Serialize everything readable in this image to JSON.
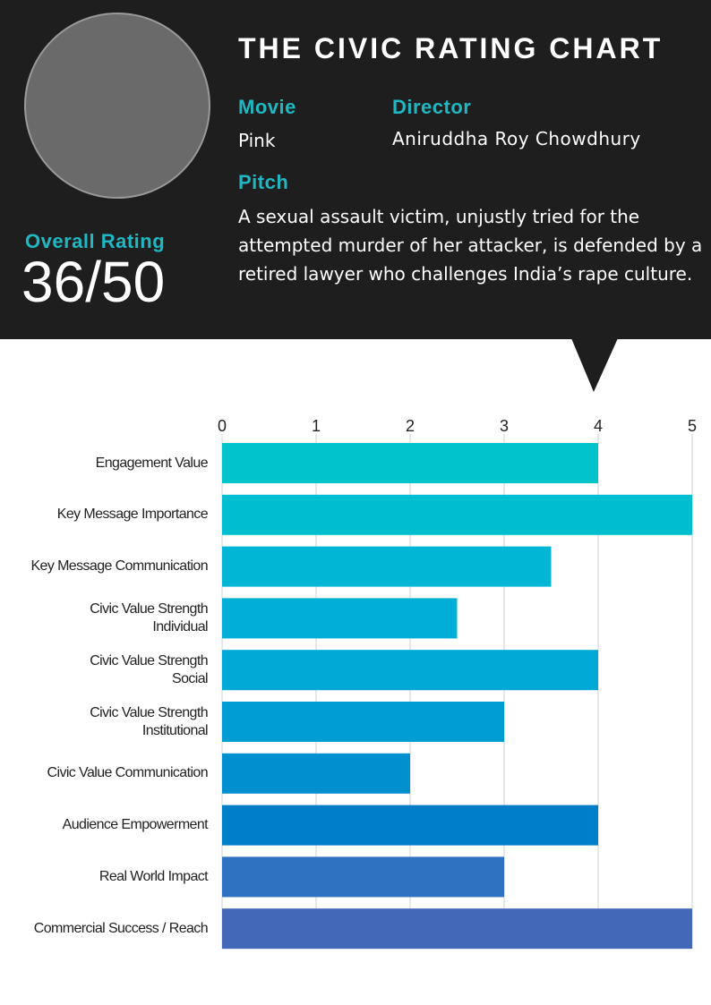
{
  "header": {
    "title": "THE CIVIC RATING CHART",
    "movie_label": "Movie",
    "movie": "Pink",
    "director_label": "Director",
    "director": "Aniruddha Roy Chowdhury",
    "pitch_label": "Pitch",
    "pitch": "A sexual assault victim, unjustly tried for the attempted murder of her attacker, is defended by a retired lawyer who challenges India’s rape culture.",
    "rating_label": "Overall Rating",
    "rating": "36/50"
  },
  "chart_data": {
    "type": "bar",
    "orientation": "horizontal",
    "categories": [
      "Engagement Value",
      "Key Message Importance",
      "Key Message Communication",
      "Civic Value Strength\nIndividual",
      "Civic Value Strength\nSocial",
      "Civic Value Strength\nInstitutional",
      "Civic Value Communication",
      "Audience Empowerment",
      "Real World Impact",
      "Commercial Success / Reach"
    ],
    "values": [
      4,
      5,
      3.5,
      2.5,
      4,
      3,
      2,
      4,
      3,
      5
    ],
    "colors": [
      "#00c3cc",
      "#00bdd0",
      "#00b6d4",
      "#00aed6",
      "#00a8d6",
      "#009dd4",
      "#0090d0",
      "#007ec8",
      "#2f72c2",
      "#4468b8"
    ],
    "xlim": [
      0,
      5
    ],
    "xticks": [
      0,
      1,
      2,
      3,
      4,
      5
    ],
    "grid": true
  }
}
